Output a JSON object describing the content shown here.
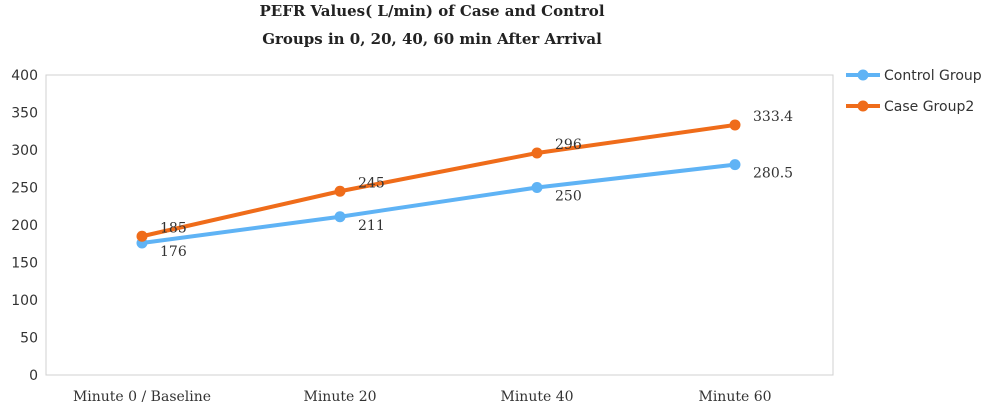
{
  "chart_data": {
    "type": "line",
    "title_lines": [
      "PEFR Values( L/min)  of Case and Control",
      "Groups in 0, 20, 40, 60 min After Arrival"
    ],
    "categories": [
      "Minute 0 / Baseline",
      "Minute 20",
      "Minute 40",
      "Minute 60"
    ],
    "ylim": [
      0,
      400
    ],
    "yticks": [
      "0",
      "50",
      "100",
      "150",
      "200",
      "250",
      "300",
      "350",
      "400"
    ],
    "grid": false,
    "legend_position": "right",
    "series": [
      {
        "name": "Control Group",
        "color": "#5fb3f5",
        "values": [
          176,
          211,
          250,
          280.5
        ],
        "labels": [
          "176",
          "211",
          "250",
          "280.5"
        ],
        "label_side": "below"
      },
      {
        "name": "Case Group2",
        "color": "#ef6c1a",
        "values": [
          185,
          245,
          296,
          333.4
        ],
        "labels": [
          "185",
          "245",
          "296",
          "333.4"
        ],
        "label_side": "above"
      }
    ]
  }
}
